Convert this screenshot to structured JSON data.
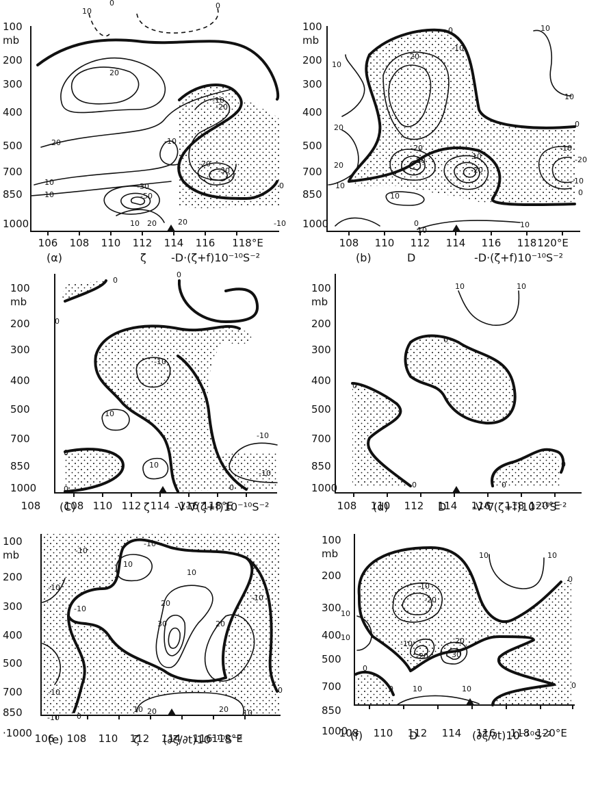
{
  "panels": [
    {
      "id": "a",
      "ylabels": [
        "100",
        "mb",
        "200",
        "300",
        "400",
        "500",
        "700",
        "850",
        "1000"
      ],
      "xlabels": [
        "106",
        "108",
        "110",
        "112",
        "114",
        "116",
        "118°E"
      ],
      "caption": {
        "letter": "(α)",
        "var": "ζ",
        "expr": "-D·(ζ+f)10⁻¹⁰S⁻²"
      },
      "contour_labels": [
        "10",
        "0",
        "0",
        "20",
        "20",
        "10",
        "10",
        "-10",
        "-20",
        "-10",
        "-20",
        "-30",
        "-30",
        "-50",
        "10",
        "20",
        "20",
        "0",
        "-10"
      ]
    },
    {
      "id": "b",
      "ylabels": [
        "100",
        "mb",
        "200",
        "300",
        "400",
        "500",
        "700",
        "850",
        "1000"
      ],
      "xlabels": [
        "108",
        "110",
        "112",
        "114",
        "116",
        "118",
        "120°E"
      ],
      "caption": {
        "letter": "(b)",
        "var": "D",
        "expr": "-D·(ζ+f)10⁻¹⁰S⁻²"
      },
      "contour_labels": [
        "0",
        "10",
        "-10",
        "-20",
        "10",
        "10",
        "20",
        "20",
        "10",
        "0",
        "-20",
        "-30",
        "10",
        "-20",
        "-10",
        "-20",
        "-10",
        "0",
        "10",
        "0",
        "10",
        "10"
      ]
    },
    {
      "id": "c",
      "ylabels": [
        "100",
        "mb",
        "200",
        "300",
        "400",
        "500",
        "700",
        "850",
        "1000"
      ],
      "xlabels": [
        "108",
        "108",
        "110",
        "112",
        "114",
        "116",
        "118°E"
      ],
      "caption": {
        "letter": "(C)",
        "var": "ζ",
        "expr": "-V·∇(ζ+f)10⁻¹⁰S⁻²"
      },
      "contour_labels": [
        "0",
        "0",
        "0",
        "-10",
        "10",
        "10",
        "-10",
        "-10",
        "0",
        "0",
        "0"
      ]
    },
    {
      "id": "d",
      "ylabels": [
        "100",
        "mb",
        "200",
        "300",
        "400",
        "500",
        "700",
        "850",
        "1000"
      ],
      "xlabels": [
        "108",
        "110",
        "112",
        "114",
        "116",
        "118",
        "120°E"
      ],
      "caption": {
        "letter": "(d)",
        "var": "D",
        "expr": "-V·∇(ζ+f)10⁻¹⁰S⁻²"
      },
      "contour_labels": [
        "10",
        "10",
        "0",
        "0",
        "0",
        "0",
        "0"
      ]
    },
    {
      "id": "e",
      "ylabels": [
        "100",
        "mb",
        "200",
        "300",
        "400",
        "500",
        "700",
        "850",
        "·1000"
      ],
      "xlabels": [
        "106",
        "108",
        "110",
        "112",
        "114",
        "116",
        "118°E"
      ],
      "caption": {
        "letter": "(e)",
        "var": "ζ",
        "expr": "(∂ζ/∂t)10⁻¹⁰S⁻²"
      },
      "contour_labels": [
        "-10",
        "-10",
        "-10",
        "10",
        "10",
        "-10",
        "20",
        "30",
        "20",
        "-10",
        "-10",
        "-10",
        "0",
        "0",
        "10",
        "20",
        "20",
        "10"
      ]
    },
    {
      "id": "f",
      "ylabels": [
        "100",
        "mb",
        "200",
        "300",
        "400",
        "500",
        "700",
        "850",
        "1000"
      ],
      "xlabels": [
        "108",
        "110",
        "112",
        "114",
        "116",
        "118",
        "120°E"
      ],
      "caption": {
        "letter": "(f)",
        "var": "D",
        "expr": "(∂ζ/∂t)10⁻¹⁰S⁻²"
      },
      "contour_labels": [
        "10",
        "10",
        "0",
        "-10",
        "-20",
        "10",
        "10",
        "-10",
        "-20",
        "20",
        "30",
        "0",
        "0",
        "10",
        "10",
        "0"
      ]
    }
  ],
  "colors": {
    "ink": "#111111",
    "paper": "#ffffff"
  }
}
